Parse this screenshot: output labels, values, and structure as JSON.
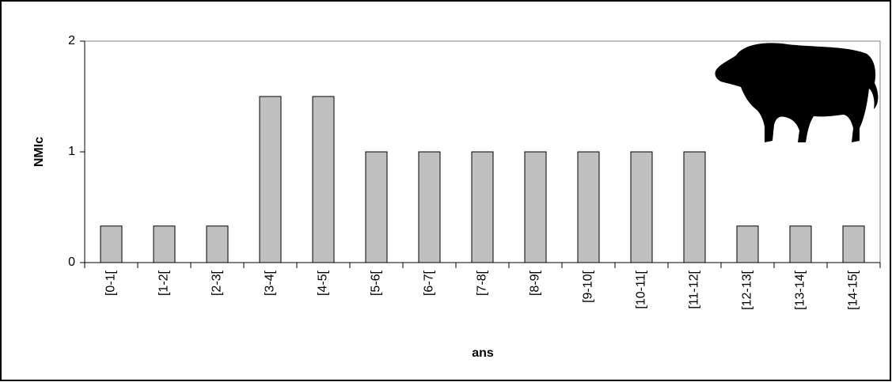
{
  "chart_data": {
    "type": "bar",
    "x_label": "ans",
    "y_label": "NMIc",
    "categories": [
      "[0-1[",
      "[1-2[",
      "[2-3[",
      "[3-4[",
      "[4-5[",
      "[5-6[",
      "[6-7[",
      "[7-8[",
      "[8-9[",
      "[9-10[",
      "[10-11[",
      "[11-12[",
      "[12-13[",
      "[13-14[",
      "[14-15["
    ],
    "values": [
      0.33,
      0.33,
      0.33,
      1.5,
      1.5,
      1,
      1,
      1,
      1,
      1,
      1,
      1,
      0.33,
      0.33,
      0.33
    ],
    "color": "#c0c0c0",
    "ylim": [
      0,
      2
    ],
    "yticks": [
      0,
      1,
      2
    ],
    "grid": false
  }
}
